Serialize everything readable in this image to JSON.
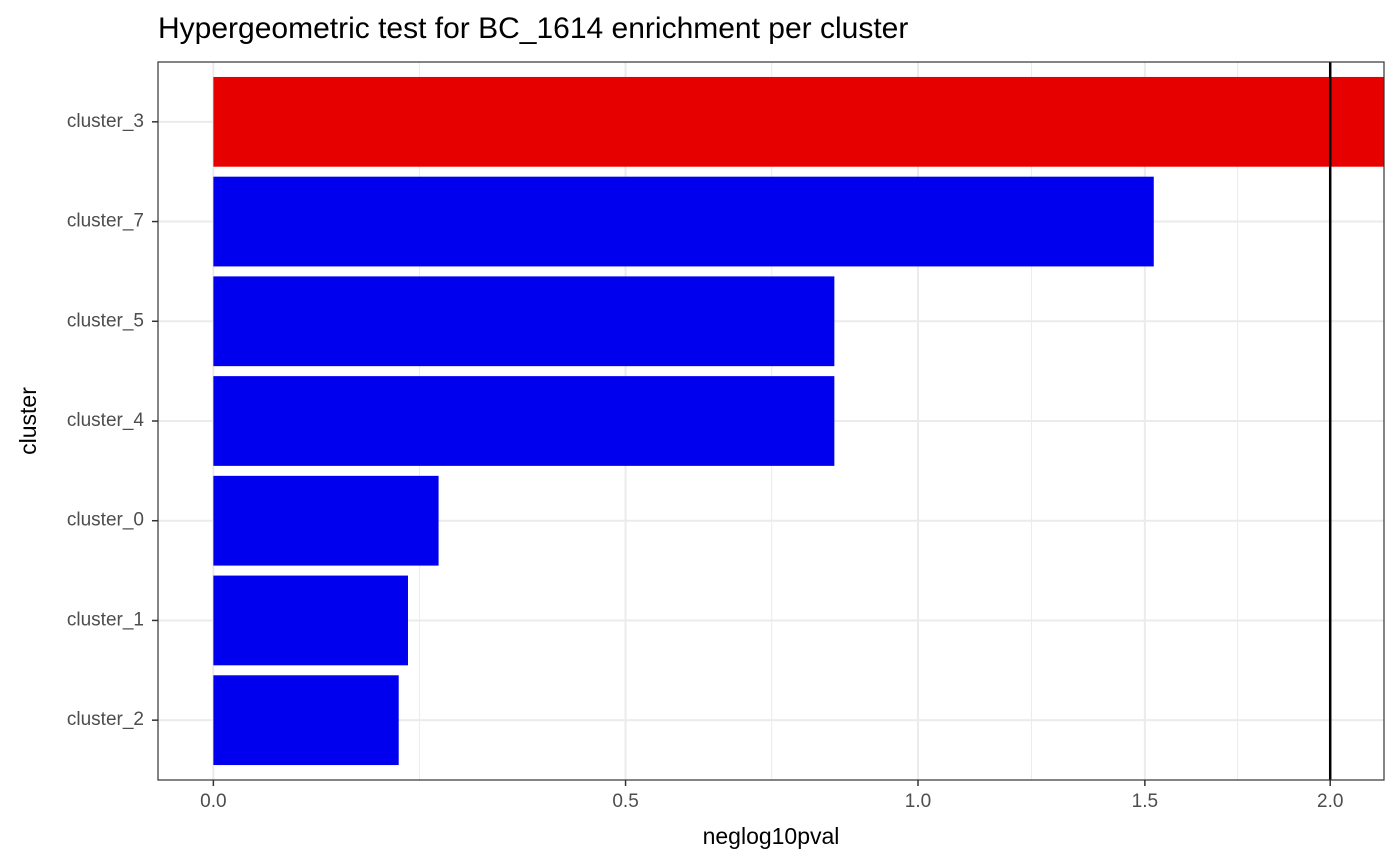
{
  "chart_data": {
    "type": "barh",
    "title": "Hypergeometric test for BC_1614 enrichment per cluster",
    "xlabel": "neglog10pval",
    "ylabel": "cluster",
    "categories": [
      "cluster_3",
      "cluster_7",
      "cluster_5",
      "cluster_4",
      "cluster_0",
      "cluster_1",
      "cluster_2"
    ],
    "values": [
      2.3,
      1.522,
      0.842,
      0.842,
      0.248,
      0.211,
      0.2
    ],
    "colors": [
      "#e60000",
      "#0000ee",
      "#0000ee",
      "#0000ee",
      "#0000ee",
      "#0000ee",
      "#0000ee"
    ],
    "xscale": "log1p",
    "xlim": [
      -0.053,
      2.163
    ],
    "xticks": [
      {
        "value": 0,
        "label": "0.0"
      },
      0.5,
      {
        "value": 1,
        "label": "1.0"
      },
      1.5,
      {
        "value": 2,
        "label": "2.0"
      }
    ],
    "vline": 2,
    "grid": true
  }
}
